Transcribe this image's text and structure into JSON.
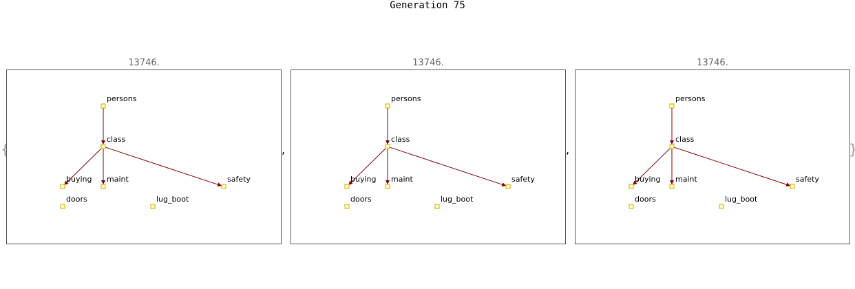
{
  "header": {
    "title": "Generation 75"
  },
  "braces": {
    "open": "{",
    "close": "}"
  },
  "separator": ",",
  "colors": {
    "edge": "#800000",
    "node_fill": "#ffffc0",
    "node_stroke": "#d4a800",
    "frame": "#555555"
  },
  "panels": [
    {
      "score": "13746."
    },
    {
      "score": "13746."
    },
    {
      "score": "13746."
    }
  ],
  "graph": {
    "nodes": [
      "persons",
      "class",
      "buying",
      "maint",
      "safety",
      "doors",
      "lug_boot"
    ],
    "edges": [
      {
        "from": "persons",
        "to": "class"
      },
      {
        "from": "class",
        "to": "buying"
      },
      {
        "from": "class",
        "to": "maint"
      },
      {
        "from": "class",
        "to": "safety"
      }
    ]
  }
}
